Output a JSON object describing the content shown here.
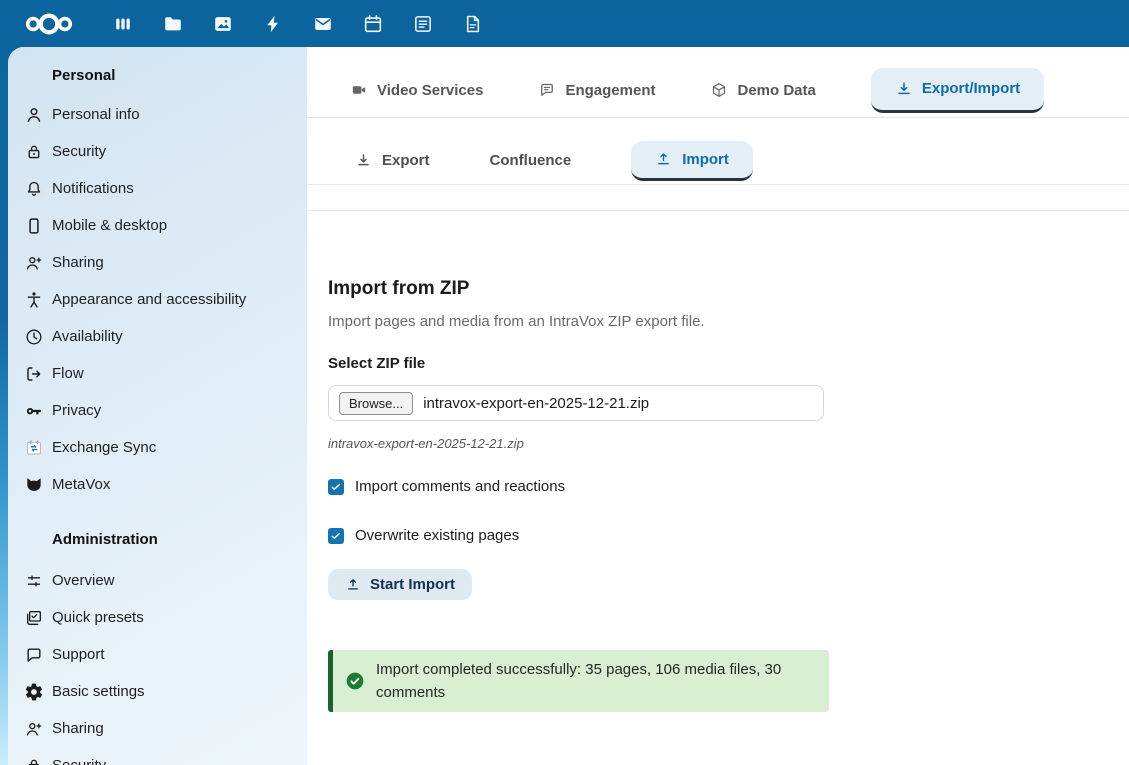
{
  "topbar": {
    "logo_icon": "nextcloud-logo",
    "apps": [
      {
        "icon": "dashboard-icon"
      },
      {
        "icon": "files-icon"
      },
      {
        "icon": "photos-icon"
      },
      {
        "icon": "activity-icon"
      },
      {
        "icon": "mail-icon"
      },
      {
        "icon": "calendar-icon"
      },
      {
        "icon": "notes-icon"
      },
      {
        "icon": "document-icon"
      }
    ]
  },
  "sidebar": {
    "personal": {
      "header": "Personal",
      "items": [
        {
          "label": "Personal info",
          "icon": "user-icon"
        },
        {
          "label": "Security",
          "icon": "lock-icon"
        },
        {
          "label": "Notifications",
          "icon": "bell-icon"
        },
        {
          "label": "Mobile & desktop",
          "icon": "phone-icon"
        },
        {
          "label": "Sharing",
          "icon": "user-plus-icon"
        },
        {
          "label": "Appearance and accessibility",
          "icon": "accessibility-icon"
        },
        {
          "label": "Availability",
          "icon": "clock-icon"
        },
        {
          "label": "Flow",
          "icon": "flow-icon"
        },
        {
          "label": "Privacy",
          "icon": "key-icon"
        },
        {
          "label": "Exchange Sync",
          "icon": "exchange-sync-icon"
        },
        {
          "label": "MetaVox",
          "icon": "metavox-icon"
        }
      ]
    },
    "administration": {
      "header": "Administration",
      "items": [
        {
          "label": "Overview",
          "icon": "sliders-icon"
        },
        {
          "label": "Quick presets",
          "icon": "quick-presets-icon"
        },
        {
          "label": "Support",
          "icon": "support-icon"
        },
        {
          "label": "Basic settings",
          "icon": "gear-icon"
        },
        {
          "label": "Sharing",
          "icon": "user-plus-icon"
        },
        {
          "label": "Security",
          "icon": "lock-icon"
        }
      ]
    }
  },
  "tabs": {
    "main": [
      {
        "label": "Video Services",
        "icon": "video-icon",
        "active": false
      },
      {
        "label": "Engagement",
        "icon": "comment-icon",
        "active": false
      },
      {
        "label": "Demo Data",
        "icon": "cube-icon",
        "active": false
      },
      {
        "label": "Export/Import",
        "icon": "download-icon",
        "active": true
      }
    ],
    "sub": [
      {
        "label": "Export",
        "icon": "download-icon",
        "active": false
      },
      {
        "label": "Confluence",
        "active": false
      },
      {
        "label": "Import",
        "icon": "upload-icon",
        "active": true
      }
    ]
  },
  "import_section": {
    "title": "Import from ZIP",
    "description": "Import pages and media from an IntraVox ZIP export file.",
    "file_label": "Select ZIP file",
    "browse_button": "Browse...",
    "file_value": "intravox-export-en-2025-12-21.zip",
    "file_hint": "intravox-export-en-2025-12-21.zip",
    "check_icon": "check-icon",
    "checkboxes": [
      {
        "label": "Import comments and reactions",
        "checked": true
      },
      {
        "label": "Overwrite existing pages",
        "checked": true
      }
    ],
    "submit_label": "Start Import",
    "submit_icon": "upload-icon",
    "status_icon": "circle-check-icon",
    "status": "Import completed successfully: 35 pages, 106 media files, 30 comments"
  },
  "colors": {
    "topbar": "#0b649d",
    "accent": "#0b6cae",
    "active_tab_bg": "#e4eef6",
    "active_tab_border": "#2a333c",
    "checkbox": "#1673b1",
    "success_bg": "#d9efd2",
    "success_border": "#17642c",
    "success_icon": "#1e7b34"
  }
}
